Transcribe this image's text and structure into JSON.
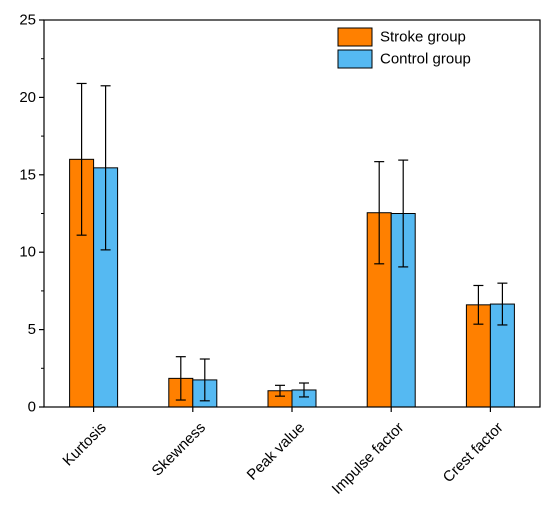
{
  "chart_data": {
    "type": "bar",
    "title": "",
    "xlabel": "",
    "ylabel": "",
    "categories": [
      "Kurtosis",
      "Skewness",
      "Peak value",
      "Impulse factor",
      "Crest factor"
    ],
    "series": [
      {
        "name": "Stroke group",
        "color": "#ff8000",
        "values": [
          16.0,
          1.85,
          1.05,
          12.55,
          6.6
        ],
        "errors": [
          4.9,
          1.4,
          0.35,
          3.3,
          1.25
        ]
      },
      {
        "name": "Control group",
        "color": "#55b9f2",
        "values": [
          15.45,
          1.75,
          1.1,
          12.5,
          6.65
        ],
        "errors": [
          5.3,
          1.35,
          0.45,
          3.45,
          1.35
        ]
      }
    ],
    "ylim": [
      0,
      25
    ],
    "yticks": [
      0,
      5,
      10,
      15,
      20,
      25
    ],
    "error_bars": true,
    "grid": false,
    "legend_position": "top-right"
  }
}
